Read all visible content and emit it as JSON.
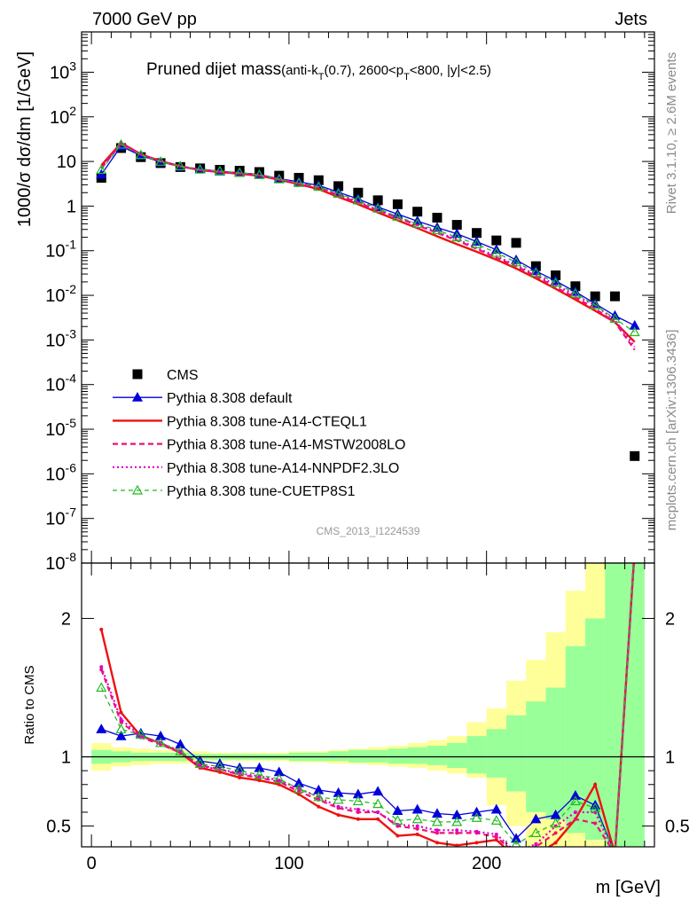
{
  "header": {
    "left": "7000 GeV pp",
    "right": "Jets"
  },
  "side": {
    "rivet": "Rivet 3.1.10, ≥ 2.6M events",
    "mcplots": "mcplots.cern.ch [arXiv:1306.3436]"
  },
  "watermark": "CMS_2013_I1224539",
  "colors": {
    "cms": "#000000",
    "default": "#0000dd",
    "a14cteq": "#ee1111",
    "a14mstw": "#ee1177",
    "a14nnpdf": "#dd00cc",
    "cuetp8s1": "#22bb22",
    "band_yellow": "#ffff99",
    "band_green": "#99ff99"
  },
  "chart_data": [
    {
      "type": "line",
      "title": "Pruned dijet mass",
      "subtitle": "(anti-k_T(0.7), 2600<p_T<800, |y|<2.5)",
      "ylabel": "1000/σ dσ/dm [1/GeV]",
      "xlabel": "m [GeV]",
      "xlim": [
        -5,
        285
      ],
      "ylim": [
        1e-08,
        8000
      ],
      "yscale": "log",
      "yticks": [
        "10^{-8}",
        "10^{-7}",
        "10^{-6}",
        "10^{-5}",
        "10^{-4}",
        "10^{-3}",
        "10^{-2}",
        "10^{-1}",
        "1",
        "10",
        "10^{2}",
        "10^{3}"
      ],
      "legend_position": "bottom-left",
      "x": [
        5,
        15,
        25,
        35,
        45,
        55,
        65,
        75,
        85,
        95,
        105,
        115,
        125,
        135,
        145,
        155,
        165,
        175,
        185,
        195,
        205,
        215,
        225,
        235,
        245,
        255,
        265,
        275
      ],
      "series": [
        {
          "name": "CMS",
          "style": "square",
          "values": [
            4.3,
            20,
            12.5,
            9.2,
            7.5,
            7.0,
            6.5,
            6.2,
            5.8,
            4.8,
            4.3,
            3.8,
            2.8,
            2.0,
            1.35,
            1.1,
            0.75,
            0.55,
            0.38,
            0.25,
            0.17,
            0.15,
            0.045,
            0.028,
            0.016,
            0.0095,
            0.0095,
            2.5e-06
          ]
        },
        {
          "name": "Pythia 8.308 default",
          "style": "line-triangle",
          "values": [
            5.1,
            22,
            13.5,
            9.7,
            7.7,
            6.8,
            6.0,
            5.6,
            5.1,
            4.1,
            3.5,
            2.9,
            2.05,
            1.44,
            0.95,
            0.66,
            0.46,
            0.33,
            0.24,
            0.16,
            0.105,
            0.062,
            0.035,
            0.021,
            0.012,
            0.0065,
            0.0035,
            0.0021
          ]
        },
        {
          "name": "Pythia 8.308 tune-A14-CTEQL1",
          "style": "line",
          "values": [
            8.2,
            26,
            14.5,
            10.2,
            7.8,
            6.4,
            5.8,
            5.3,
            4.8,
            3.9,
            3.1,
            2.4,
            1.6,
            1.1,
            0.72,
            0.48,
            0.32,
            0.21,
            0.14,
            0.095,
            0.063,
            0.04,
            0.024,
            0.014,
            0.008,
            0.0045,
            0.0025,
            0.0009
          ]
        },
        {
          "name": "Pythia 8.308 tune-A14-MSTW2008LO",
          "style": "dashed",
          "values": [
            7.0,
            25,
            14.2,
            10.0,
            7.8,
            6.5,
            5.9,
            5.4,
            4.9,
            4.0,
            3.2,
            2.6,
            1.75,
            1.2,
            0.8,
            0.55,
            0.37,
            0.25,
            0.17,
            0.11,
            0.07,
            0.045,
            0.027,
            0.015,
            0.009,
            0.005,
            0.0025,
            0.0006
          ]
        },
        {
          "name": "Pythia 8.308 tune-A14-NNPDF2.3LO",
          "style": "dotted",
          "values": [
            7.1,
            25.5,
            14.3,
            10.1,
            7.8,
            6.5,
            5.9,
            5.5,
            5.0,
            4.0,
            3.3,
            2.7,
            1.8,
            1.25,
            0.82,
            0.56,
            0.38,
            0.26,
            0.18,
            0.115,
            0.075,
            0.047,
            0.029,
            0.017,
            0.01,
            0.006,
            0.0028,
            0.0007
          ]
        },
        {
          "name": "Pythia 8.308 tune-CUETP8S1",
          "style": "dashed-open-triangle",
          "values": [
            6.5,
            24,
            14.0,
            9.9,
            7.8,
            6.6,
            6.1,
            5.6,
            5.0,
            4.0,
            3.3,
            2.7,
            1.9,
            1.35,
            0.88,
            0.58,
            0.4,
            0.29,
            0.2,
            0.14,
            0.09,
            0.055,
            0.032,
            0.019,
            0.011,
            0.006,
            0.003,
            0.0015
          ]
        }
      ]
    },
    {
      "type": "line",
      "ylabel": "Ratio to CMS",
      "xlabel": "m [GeV]",
      "xlim": [
        -5,
        285
      ],
      "ylim": [
        0.35,
        2.4
      ],
      "ytick_labels": [
        "0.5",
        "1",
        "2"
      ],
      "xtick_labels": [
        "0",
        "100",
        "200"
      ],
      "reference": 1,
      "bands": {
        "yellow_lower": [
          0.9,
          0.93,
          0.94,
          0.95,
          0.95,
          0.96,
          0.97,
          0.97,
          0.97,
          0.97,
          0.96,
          0.96,
          0.95,
          0.95,
          0.94,
          0.93,
          0.92,
          0.9,
          0.88,
          0.85,
          0.65,
          0.5,
          0.3,
          0.3,
          0.3,
          0.3,
          0.3,
          0.3
        ],
        "yellow_upper": [
          1.1,
          1.07,
          1.06,
          1.05,
          1.05,
          1.04,
          1.03,
          1.03,
          1.03,
          1.03,
          1.04,
          1.04,
          1.05,
          1.06,
          1.07,
          1.08,
          1.1,
          1.12,
          1.15,
          1.25,
          1.35,
          1.55,
          1.7,
          1.9,
          2.2,
          2.5,
          2.5,
          2.5
        ],
        "green_lower": [
          0.95,
          0.96,
          0.97,
          0.97,
          0.97,
          0.98,
          0.98,
          0.98,
          0.98,
          0.98,
          0.97,
          0.97,
          0.97,
          0.96,
          0.96,
          0.95,
          0.95,
          0.94,
          0.92,
          0.88,
          0.85,
          0.75,
          0.6,
          0.55,
          0.45,
          0.4,
          0.3,
          0.3
        ],
        "green_upper": [
          1.05,
          1.04,
          1.03,
          1.03,
          1.03,
          1.02,
          1.02,
          1.02,
          1.02,
          1.02,
          1.03,
          1.03,
          1.04,
          1.05,
          1.05,
          1.06,
          1.07,
          1.08,
          1.1,
          1.15,
          1.2,
          1.3,
          1.4,
          1.5,
          1.8,
          2.0,
          2.5,
          2.5
        ]
      },
      "series": [
        {
          "name": "Pythia 8.308 default",
          "values": [
            1.2,
            1.15,
            1.17,
            1.15,
            1.09,
            0.97,
            0.95,
            0.92,
            0.92,
            0.89,
            0.81,
            0.76,
            0.74,
            0.73,
            0.75,
            0.61,
            0.62,
            0.59,
            0.58,
            0.6,
            0.62,
            0.41,
            0.55,
            0.58,
            0.72,
            0.65,
            0.3,
            2.5
          ]
        },
        {
          "name": "Pythia 8.308 tune-A14-CTEQL1",
          "values": [
            1.92,
            1.32,
            1.15,
            1.1,
            1.03,
            0.92,
            0.89,
            0.85,
            0.83,
            0.8,
            0.73,
            0.64,
            0.58,
            0.55,
            0.55,
            0.43,
            0.44,
            0.38,
            0.36,
            0.38,
            0.4,
            0.27,
            0.29,
            0.38,
            0.55,
            0.8,
            0.3,
            2.5
          ]
        },
        {
          "name": "Pythia 8.308 tune-A14-MSTW2008LO",
          "values": [
            1.63,
            1.25,
            1.14,
            1.09,
            1.03,
            0.94,
            0.91,
            0.87,
            0.85,
            0.82,
            0.75,
            0.69,
            0.63,
            0.6,
            0.6,
            0.5,
            0.48,
            0.45,
            0.45,
            0.45,
            0.42,
            0.3,
            0.35,
            0.45,
            0.55,
            0.52,
            0.3,
            2.5
          ]
        },
        {
          "name": "Pythia 8.308 tune-A14-NNPDF2.3LO",
          "values": [
            1.65,
            1.27,
            1.15,
            1.1,
            1.04,
            0.93,
            0.91,
            0.88,
            0.86,
            0.83,
            0.77,
            0.71,
            0.64,
            0.62,
            0.6,
            0.51,
            0.5,
            0.47,
            0.47,
            0.46,
            0.44,
            0.31,
            0.37,
            0.5,
            0.6,
            0.6,
            0.3,
            2.5
          ]
        },
        {
          "name": "Pythia 8.308 tune-CUETP8S1",
          "values": [
            1.5,
            1.2,
            1.16,
            1.1,
            1.04,
            0.95,
            0.93,
            0.9,
            0.87,
            0.84,
            0.77,
            0.71,
            0.69,
            0.68,
            0.66,
            0.54,
            0.55,
            0.53,
            0.53,
            0.56,
            0.54,
            0.37,
            0.45,
            0.52,
            0.68,
            0.63,
            0.3,
            2.5
          ]
        }
      ]
    }
  ]
}
